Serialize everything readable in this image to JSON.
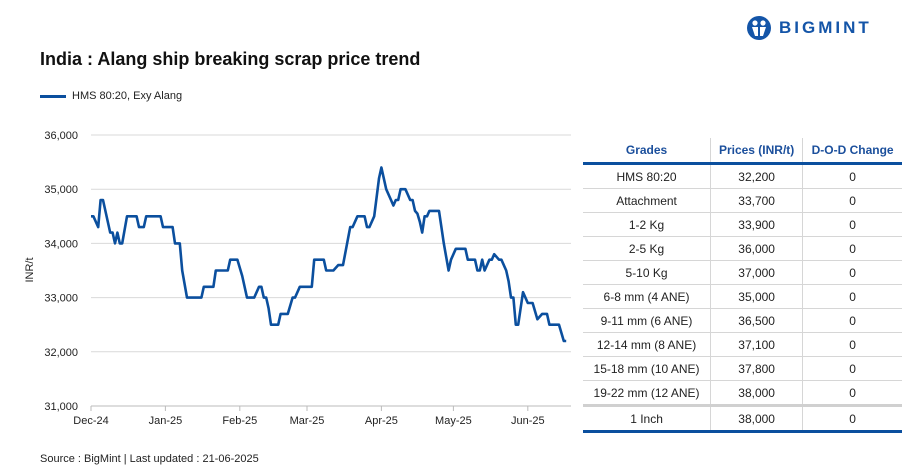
{
  "header": {
    "title": "India : Alang ship breaking scrap price trend",
    "logo_text": "BIGMINT"
  },
  "footer": {
    "source": "Source : BigMint | Last updated : 21-06-2025"
  },
  "colors": {
    "series": "#0b4f9e",
    "header_text": "#1b4f9c",
    "grid": "#d9d9d9"
  },
  "chart_data": {
    "type": "line",
    "ylabel": "INR/t",
    "ylim": [
      31000,
      36000
    ],
    "yticks": [
      "31,000",
      "32,000",
      "33,000",
      "34,000",
      "35,000",
      "36,000"
    ],
    "xlim": [
      "2024-12-01",
      "2025-06-19"
    ],
    "xticks": [
      {
        "date": "2024-12-01",
        "label": "Dec-24"
      },
      {
        "date": "2025-01-01",
        "label": "Jan-25"
      },
      {
        "date": "2025-02-01",
        "label": "Feb-25"
      },
      {
        "date": "2025-03-01",
        "label": "Mar-25"
      },
      {
        "date": "2025-04-01",
        "label": "Apr-25"
      },
      {
        "date": "2025-05-01",
        "label": "May-25"
      },
      {
        "date": "2025-06-01",
        "label": "Jun-25"
      }
    ],
    "grid": true,
    "legend_position": "top-left",
    "series": [
      {
        "name": "HMS 80:20, Exy Alang",
        "points": [
          [
            "2024-12-01",
            34500
          ],
          [
            "2024-12-02",
            34500
          ],
          [
            "2024-12-04",
            34300
          ],
          [
            "2024-12-05",
            34800
          ],
          [
            "2024-12-06",
            34800
          ],
          [
            "2024-12-09",
            34200
          ],
          [
            "2024-12-10",
            34200
          ],
          [
            "2024-12-11",
            34000
          ],
          [
            "2024-12-12",
            34200
          ],
          [
            "2024-12-13",
            34000
          ],
          [
            "2024-12-14",
            34000
          ],
          [
            "2024-12-16",
            34500
          ],
          [
            "2024-12-20",
            34500
          ],
          [
            "2024-12-21",
            34300
          ],
          [
            "2024-12-23",
            34300
          ],
          [
            "2024-12-24",
            34500
          ],
          [
            "2024-12-30",
            34500
          ],
          [
            "2024-12-31",
            34300
          ],
          [
            "2025-01-04",
            34300
          ],
          [
            "2025-01-05",
            34000
          ],
          [
            "2025-01-07",
            34000
          ],
          [
            "2025-01-08",
            33500
          ],
          [
            "2025-01-10",
            33000
          ],
          [
            "2025-01-16",
            33000
          ],
          [
            "2025-01-17",
            33200
          ],
          [
            "2025-01-21",
            33200
          ],
          [
            "2025-01-22",
            33500
          ],
          [
            "2025-01-27",
            33500
          ],
          [
            "2025-01-28",
            33700
          ],
          [
            "2025-01-31",
            33700
          ],
          [
            "2025-02-02",
            33400
          ],
          [
            "2025-02-04",
            33000
          ],
          [
            "2025-02-07",
            33000
          ],
          [
            "2025-02-09",
            33200
          ],
          [
            "2025-02-10",
            33200
          ],
          [
            "2025-02-11",
            33000
          ],
          [
            "2025-02-12",
            33000
          ],
          [
            "2025-02-13",
            32800
          ],
          [
            "2025-02-14",
            32500
          ],
          [
            "2025-02-17",
            32500
          ],
          [
            "2025-02-18",
            32700
          ],
          [
            "2025-02-21",
            32700
          ],
          [
            "2025-02-23",
            33000
          ],
          [
            "2025-02-24",
            33000
          ],
          [
            "2025-02-26",
            33200
          ],
          [
            "2025-03-03",
            33200
          ],
          [
            "2025-03-04",
            33700
          ],
          [
            "2025-03-08",
            33700
          ],
          [
            "2025-03-09",
            33500
          ],
          [
            "2025-03-12",
            33500
          ],
          [
            "2025-03-14",
            33600
          ],
          [
            "2025-03-16",
            33600
          ],
          [
            "2025-03-19",
            34300
          ],
          [
            "2025-03-20",
            34300
          ],
          [
            "2025-03-22",
            34500
          ],
          [
            "2025-03-25",
            34500
          ],
          [
            "2025-03-26",
            34300
          ],
          [
            "2025-03-27",
            34300
          ],
          [
            "2025-03-29",
            34500
          ],
          [
            "2025-03-31",
            35200
          ],
          [
            "2025-04-01",
            35400
          ],
          [
            "2025-04-03",
            35000
          ],
          [
            "2025-04-05",
            34800
          ],
          [
            "2025-04-06",
            34700
          ],
          [
            "2025-04-07",
            34800
          ],
          [
            "2025-04-08",
            34800
          ],
          [
            "2025-04-09",
            35000
          ],
          [
            "2025-04-11",
            35000
          ],
          [
            "2025-04-13",
            34800
          ],
          [
            "2025-04-14",
            34800
          ],
          [
            "2025-04-15",
            34600
          ],
          [
            "2025-04-16",
            34550
          ],
          [
            "2025-04-17",
            34400
          ],
          [
            "2025-04-18",
            34200
          ],
          [
            "2025-04-19",
            34500
          ],
          [
            "2025-04-20",
            34500
          ],
          [
            "2025-04-21",
            34600
          ],
          [
            "2025-04-25",
            34600
          ],
          [
            "2025-04-26",
            34300
          ],
          [
            "2025-04-27",
            34000
          ],
          [
            "2025-04-29",
            33500
          ],
          [
            "2025-04-30",
            33700
          ],
          [
            "2025-05-02",
            33900
          ],
          [
            "2025-05-06",
            33900
          ],
          [
            "2025-05-07",
            33700
          ],
          [
            "2025-05-10",
            33700
          ],
          [
            "2025-05-11",
            33500
          ],
          [
            "2025-05-12",
            33500
          ],
          [
            "2025-05-13",
            33700
          ],
          [
            "2025-05-14",
            33500
          ],
          [
            "2025-05-16",
            33700
          ],
          [
            "2025-05-17",
            33700
          ],
          [
            "2025-05-18",
            33800
          ],
          [
            "2025-05-20",
            33700
          ],
          [
            "2025-05-21",
            33700
          ],
          [
            "2025-05-23",
            33500
          ],
          [
            "2025-05-24",
            33300
          ],
          [
            "2025-05-25",
            33000
          ],
          [
            "2025-05-26",
            33000
          ],
          [
            "2025-05-27",
            32500
          ],
          [
            "2025-05-28",
            32500
          ],
          [
            "2025-05-30",
            33100
          ],
          [
            "2025-06-01",
            32900
          ],
          [
            "2025-06-03",
            32900
          ],
          [
            "2025-06-05",
            32600
          ],
          [
            "2025-06-07",
            32700
          ],
          [
            "2025-06-09",
            32700
          ],
          [
            "2025-06-10",
            32500
          ],
          [
            "2025-06-14",
            32500
          ],
          [
            "2025-06-16",
            32200
          ],
          [
            "2025-06-17",
            32200
          ]
        ]
      }
    ]
  },
  "table": {
    "headers": [
      "Grades",
      "Prices (INR/t)",
      "D-O-D Change"
    ],
    "rows": [
      [
        "HMS 80:20",
        "32,200",
        "0"
      ],
      [
        "Attachment",
        "33,700",
        "0"
      ],
      [
        "1-2 Kg",
        "33,900",
        "0"
      ],
      [
        "2-5 Kg",
        "36,000",
        "0"
      ],
      [
        "5-10 Kg",
        "37,000",
        "0"
      ],
      [
        "6-8 mm (4 ANE)",
        "35,000",
        "0"
      ],
      [
        "9-11 mm (6 ANE)",
        "36,500",
        "0"
      ],
      [
        "12-14 mm (8 ANE)",
        "37,100",
        "0"
      ],
      [
        "15-18 mm (10 ANE)",
        "37,800",
        "0"
      ],
      [
        "19-22 mm (12 ANE)",
        "38,000",
        "0"
      ],
      [
        "1 Inch",
        "38,000",
        "0"
      ]
    ]
  }
}
